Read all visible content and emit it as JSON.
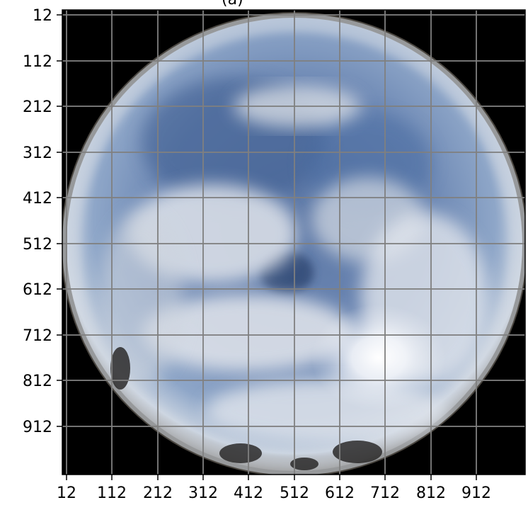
{
  "figure": {
    "title": "(a)",
    "image_description_icon": "fisheye-sky-photo",
    "grid": true,
    "grid_color": "#808080",
    "background": "#000000"
  },
  "axes": {
    "x_ticks": [
      "12",
      "112",
      "212",
      "312",
      "412",
      "512",
      "612",
      "712",
      "812",
      "912"
    ],
    "y_ticks": [
      "12",
      "112",
      "212",
      "312",
      "412",
      "512",
      "612",
      "712",
      "812",
      "912"
    ]
  }
}
